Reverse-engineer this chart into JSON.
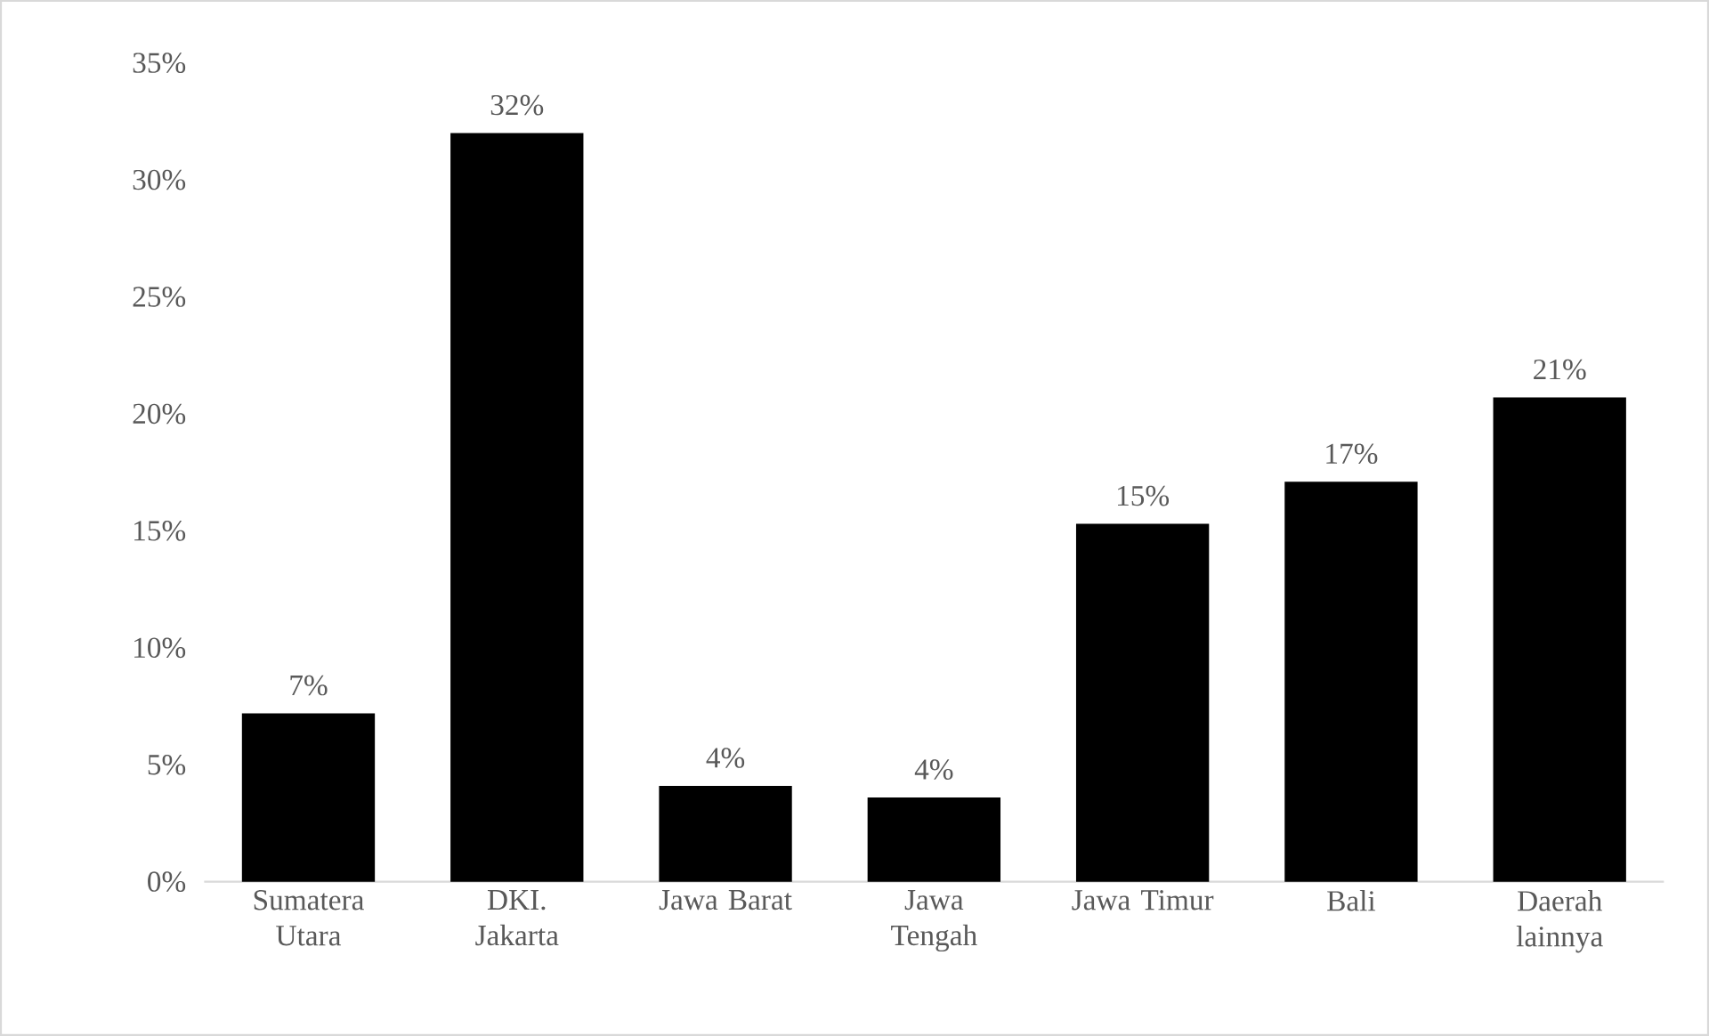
{
  "chart_data": {
    "type": "bar",
    "categories": [
      "Sumatera Utara",
      "DKI. Jakarta",
      "Jawa Barat",
      "Jawa Tengah",
      "Jawa Timur",
      "Bali",
      "Daerah lainnya"
    ],
    "values": [
      7.2,
      32,
      4.1,
      3.6,
      15.3,
      17.1,
      20.7
    ],
    "value_labels": [
      "7%",
      "32%",
      "4%",
      "4%",
      "15%",
      "17%",
      "21%"
    ],
    "color": "#000000",
    "ylim": [
      0,
      35
    ],
    "yticks": [
      {
        "value": 0,
        "label": "0%"
      },
      {
        "value": 5,
        "label": "5%"
      },
      {
        "value": 10,
        "label": "10%"
      },
      {
        "value": 15,
        "label": "15%"
      },
      {
        "value": 20,
        "label": "20%"
      },
      {
        "value": 25,
        "label": "25%"
      },
      {
        "value": 30,
        "label": "30%"
      },
      {
        "value": 35,
        "label": "35%"
      }
    ],
    "grid": false
  }
}
